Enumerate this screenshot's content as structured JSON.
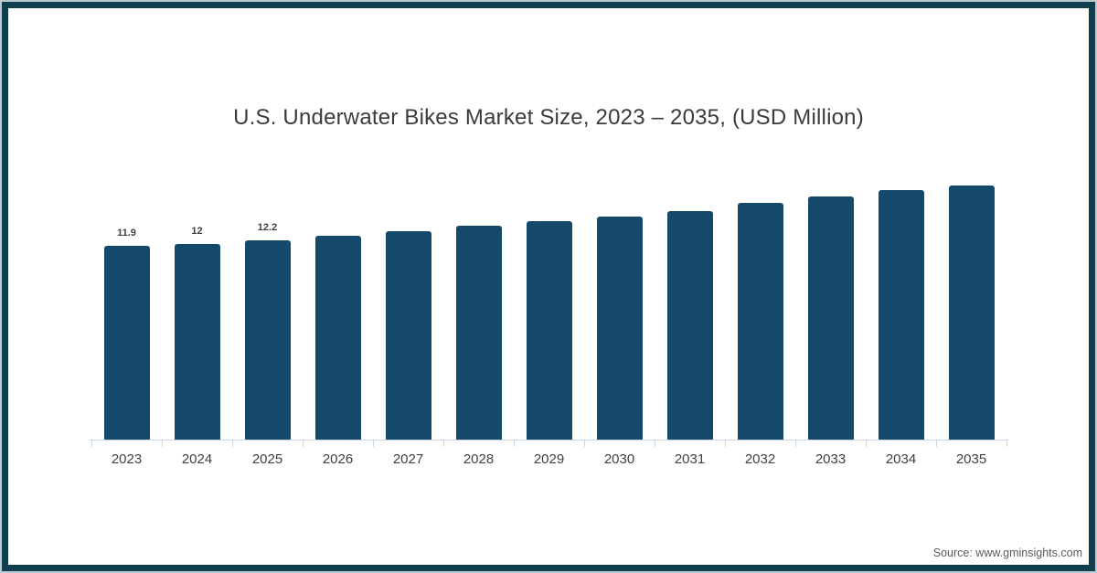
{
  "chart_data": {
    "type": "bar",
    "title": "U.S. Underwater Bikes Market Size, 2023 – 2035, (USD Million)",
    "xlabel": "",
    "ylabel": "",
    "categories": [
      "2023",
      "2024",
      "2025",
      "2026",
      "2027",
      "2028",
      "2029",
      "2030",
      "2031",
      "2032",
      "2033",
      "2034",
      "2035"
    ],
    "values": [
      11.9,
      12.0,
      12.2,
      12.5,
      12.8,
      13.1,
      13.4,
      13.7,
      14.0,
      14.5,
      14.9,
      15.3,
      15.6
    ],
    "data_labels": [
      "11.9",
      "12",
      "12.2",
      "",
      "",
      "",
      "",
      "",
      "",
      "",
      "",
      "",
      ""
    ],
    "ylim": [
      0,
      17
    ],
    "grid": false,
    "legend": "none",
    "bar_color": "#14496b",
    "axis_line_color": "#cbd5e3",
    "title_color": "#3b3b3b",
    "label_color": "#404040"
  },
  "source": {
    "text": "Source: www.gminsights.com"
  },
  "frame": {
    "border_color": "#113e4e",
    "outer_line_color": "#b9cad0",
    "background": "#ffffff"
  }
}
